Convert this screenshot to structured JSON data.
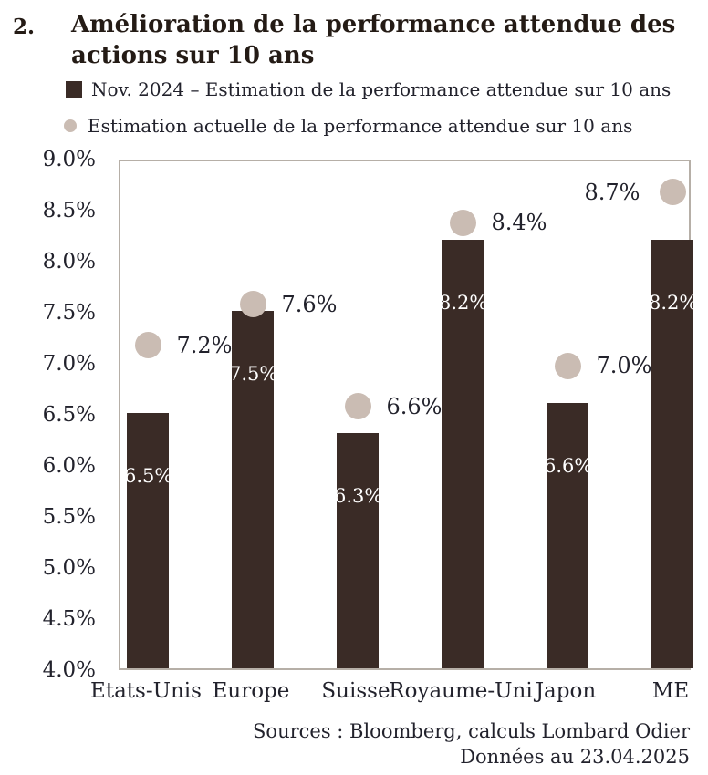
{
  "figure_number": "2.",
  "title": {
    "line1": "Amélioration de la performance attendue des",
    "line2": "actions sur 10 ans"
  },
  "legend": {
    "bars": {
      "label": "Nov. 2024 – Estimation de la performance attendue sur 10 ans"
    },
    "dots": {
      "label": "Estimation actuelle de la performance attendue sur 10 ans"
    }
  },
  "chart_data": {
    "type": "bar",
    "title": "Amélioration de la performance attendue des actions sur 10 ans",
    "categories": [
      "Etats-Unis",
      "Europe",
      "Suisse",
      "Royaume-Uni",
      "Japon",
      "ME"
    ],
    "series": [
      {
        "name": "Nov. 2024 – Estimation de la performance attendue sur 10 ans",
        "type": "bar",
        "values": [
          6.5,
          7.5,
          6.3,
          8.2,
          6.6,
          8.2
        ],
        "labels": [
          "6.5%",
          "7.5%",
          "6.3%",
          "8.2%",
          "6.6%",
          "8.2%"
        ],
        "color": "#3a2b26"
      },
      {
        "name": "Estimation actuelle de la performance attendue sur 10 ans",
        "type": "scatter",
        "values": [
          7.2,
          7.6,
          6.6,
          8.4,
          7.0,
          8.7
        ],
        "labels": [
          "7.2%",
          "7.6%",
          "6.6%",
          "8.4%",
          "7.0%",
          "8.7%"
        ],
        "label_side": [
          "right",
          "right",
          "right",
          "right",
          "right",
          "left"
        ],
        "color": "#cabcb3"
      }
    ],
    "xlabel": "",
    "ylabel": "",
    "ylim": [
      4.0,
      9.0
    ],
    "ytick_step": 0.5,
    "ytick_labels": [
      "9.0%",
      "8.5%",
      "8.0%",
      "7.5%",
      "7.0%",
      "6.5%",
      "6.0%",
      "5.5%",
      "5.0%",
      "4.5%",
      "4.0%"
    ],
    "grid": false,
    "legend_position": "top-left"
  },
  "footer": {
    "source_line1": "Sources : Bloomberg, calculs Lombard Odier",
    "source_line2": "Données au 23.04.2025"
  },
  "colors": {
    "bar": "#3a2b26",
    "dot": "#cabcb3",
    "plot_border": "#b6afa7",
    "text": "#22222c",
    "title_text": "#241b15",
    "bar_label_text": "#ffffff"
  }
}
